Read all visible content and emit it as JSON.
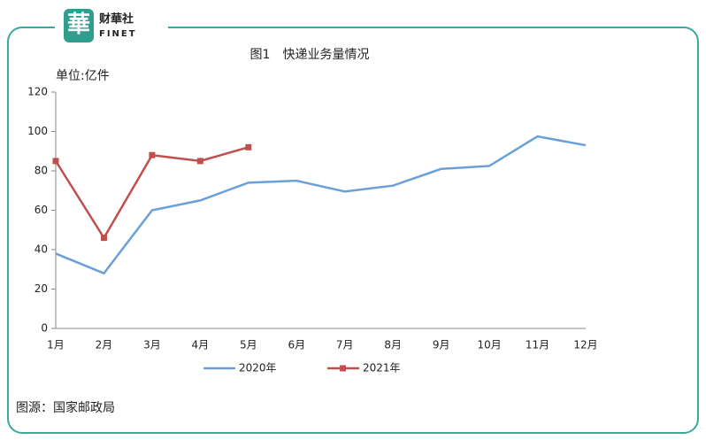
{
  "logo": {
    "mark": "華",
    "name": "财華社",
    "sub": "FINET"
  },
  "chart_data": {
    "type": "line",
    "title": "图1　快递业务量情况",
    "y_axis_label": "单位:亿件",
    "categories": [
      "1月",
      "2月",
      "3月",
      "4月",
      "5月",
      "6月",
      "7月",
      "8月",
      "9月",
      "10月",
      "11月",
      "12月"
    ],
    "series": [
      {
        "name": "2020年",
        "color": "#6a9fd8",
        "marker": false,
        "values": [
          38,
          28,
          60,
          65,
          74,
          75,
          69.5,
          72.5,
          81,
          82.5,
          97.5,
          93
        ]
      },
      {
        "name": "2021年",
        "color": "#c0504d",
        "marker": true,
        "values": [
          85,
          46,
          88,
          85,
          92,
          null,
          null,
          null,
          null,
          null,
          null,
          null
        ]
      }
    ],
    "ylim": [
      0,
      120
    ],
    "yticks": [
      0,
      20,
      40,
      60,
      80,
      100,
      120
    ],
    "legend": "bottom"
  },
  "source": "图源：国家邮政局"
}
